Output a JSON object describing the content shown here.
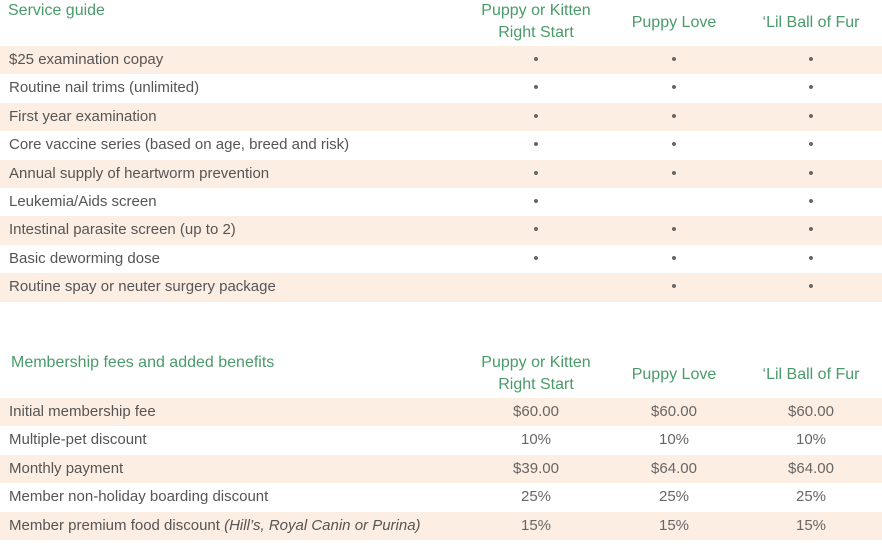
{
  "service_guide": {
    "title": "Service guide",
    "columns": [
      {
        "line1": "Puppy or Kitten",
        "line2": "Right Start"
      },
      {
        "line1": "Puppy Love",
        "line2": ""
      },
      {
        "line1": "‘Lil Ball of Fur",
        "line2": ""
      }
    ],
    "rows": [
      {
        "label": "$25 examination copay",
        "cells": [
          "•",
          "•",
          "•"
        ]
      },
      {
        "label": "Routine nail trims (unlimited)",
        "cells": [
          "•",
          "•",
          "•"
        ]
      },
      {
        "label": "First year examination",
        "cells": [
          "•",
          "•",
          "•"
        ]
      },
      {
        "label": "Core vaccine series (based on age, breed and risk)",
        "cells": [
          "•",
          "•",
          "•"
        ]
      },
      {
        "label": "Annual supply of heartworm prevention",
        "cells": [
          "•",
          "•",
          "•"
        ]
      },
      {
        "label": "Leukemia/Aids screen",
        "cells": [
          "•",
          "",
          "•"
        ]
      },
      {
        "label": "Intestinal parasite screen (up to 2)",
        "cells": [
          "•",
          "•",
          "•"
        ]
      },
      {
        "label": "Basic deworming dose",
        "cells": [
          "•",
          "•",
          "•"
        ]
      },
      {
        "label": "Routine spay or neuter surgery package",
        "cells": [
          "",
          "•",
          "•"
        ]
      }
    ]
  },
  "membership": {
    "title": "Membership fees and added benefits",
    "columns": [
      {
        "line1": "Puppy or Kitten",
        "line2": "Right Start"
      },
      {
        "line1": "Puppy Love",
        "line2": ""
      },
      {
        "line1": "‘Lil Ball of Fur",
        "line2": ""
      }
    ],
    "rows": [
      {
        "label": "Initial membership fee",
        "label_italic": "",
        "cells": [
          "$60.00",
          "$60.00",
          "$60.00"
        ]
      },
      {
        "label": "Multiple-pet discount",
        "label_italic": "",
        "cells": [
          "10%",
          "10%",
          "10%"
        ]
      },
      {
        "label": "Monthly payment",
        "label_italic": "",
        "cells": [
          "$39.00",
          "$64.00",
          "$64.00"
        ]
      },
      {
        "label": "Member non-holiday boarding discount",
        "label_italic": "",
        "cells": [
          "25%",
          "25%",
          "25%"
        ]
      },
      {
        "label": "Member premium food discount ",
        "label_italic": "(Hill’s, Royal Canin or Purina)",
        "cells": [
          "15%",
          "15%",
          "15%"
        ]
      }
    ]
  },
  "colors": {
    "heading": "#4a9a6a",
    "shade": "#fdeee3",
    "text": "#555555"
  }
}
